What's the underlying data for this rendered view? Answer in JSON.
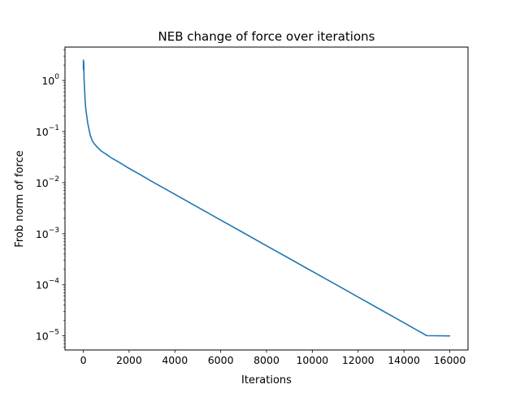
{
  "chart_data": {
    "type": "line",
    "title": "NEB change of force over iterations",
    "xlabel": "Iterations",
    "ylabel": "Frob norm of force",
    "xscale": "linear",
    "yscale": "log",
    "xlim": [
      -800,
      16800
    ],
    "ylim": [
      5.3e-06,
      4.5
    ],
    "grid": false,
    "legend": "none",
    "xticks": [
      0,
      2000,
      4000,
      6000,
      8000,
      10000,
      12000,
      14000,
      16000
    ],
    "xtick_labels": [
      "0",
      "2000",
      "4000",
      "6000",
      "8000",
      "10000",
      "12000",
      "14000",
      "16000"
    ],
    "yticks": [
      {
        "value": 1,
        "base": "10",
        "exp": "0"
      },
      {
        "value": 0.1,
        "base": "10",
        "exp": "−1"
      },
      {
        "value": 0.01,
        "base": "10",
        "exp": "−2"
      },
      {
        "value": 0.001,
        "base": "10",
        "exp": "−3"
      },
      {
        "value": 0.0001,
        "base": "10",
        "exp": "−4"
      },
      {
        "value": 1e-05,
        "base": "10",
        "exp": "−5"
      }
    ],
    "series": [
      {
        "color": "#1f77b4",
        "x": [
          0,
          5,
          10,
          20,
          30,
          40,
          60,
          80,
          100,
          150,
          200,
          250,
          300,
          400,
          500,
          600,
          700,
          800,
          1000,
          1200,
          1500,
          2000,
          2500,
          3000,
          4000,
          5000,
          6000,
          7000,
          8000,
          9000,
          10000,
          11000,
          12000,
          13000,
          14000,
          15000,
          16000
        ],
        "y": [
          1.7,
          2.5,
          1.6,
          2.3,
          1.2,
          0.9,
          0.6,
          0.4,
          0.3,
          0.2,
          0.14,
          0.11,
          0.085,
          0.065,
          0.056,
          0.05,
          0.045,
          0.041,
          0.036,
          0.031,
          0.026,
          0.019,
          0.0142,
          0.0105,
          0.0059,
          0.0033,
          0.00185,
          0.00104,
          0.00058,
          0.000327,
          0.000183,
          0.000103,
          5.76e-05,
          3.23e-05,
          1.81e-05,
          1.01e-05,
          1e-05
        ]
      }
    ]
  }
}
